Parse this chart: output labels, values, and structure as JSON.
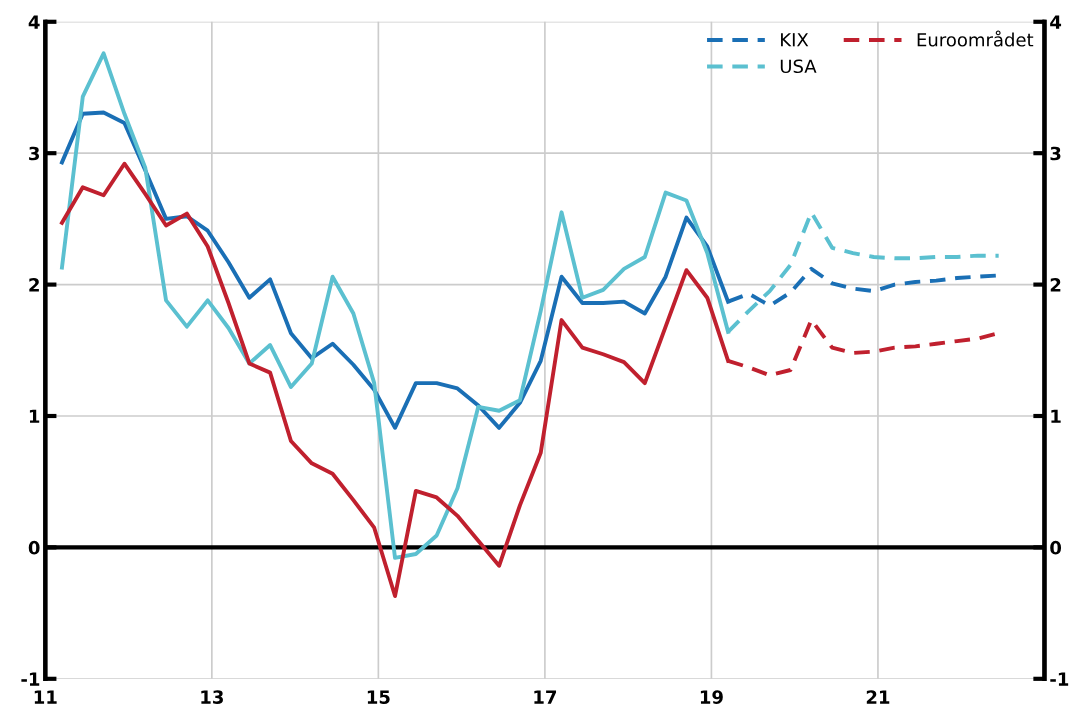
{
  "chart_data": {
    "type": "line",
    "xlim": [
      11,
      23
    ],
    "xticks": [
      11,
      13,
      15,
      17,
      19,
      21
    ],
    "ylim": [
      -1,
      4
    ],
    "yticks": [
      -1,
      0,
      1,
      2,
      3,
      4
    ],
    "y2lim": [
      -1,
      4
    ],
    "y2ticks": [
      -1,
      0,
      1,
      2,
      3,
      4
    ],
    "grid": true,
    "legend": "top right",
    "marker": "none",
    "ref_lines": [
      {
        "axis": "y",
        "value": 0,
        "color": "#000000"
      }
    ],
    "series": [
      {
        "color": "#1a6fb5",
        "line_style": "solid",
        "x": [
          11.2,
          11.45,
          11.7,
          11.95,
          12.2,
          12.45,
          12.7,
          12.95,
          13.2,
          13.45,
          13.7,
          13.95,
          14.2,
          14.45,
          14.7,
          14.95,
          15.2,
          15.45,
          15.7,
          15.95,
          16.2,
          16.45,
          16.7,
          16.95,
          17.2,
          17.45,
          17.7,
          17.95,
          18.2,
          18.45,
          18.7,
          18.95,
          19.2
        ],
        "values": [
          2.93,
          3.3,
          3.31,
          3.23,
          2.87,
          2.5,
          2.52,
          2.41,
          2.17,
          1.9,
          2.04,
          1.63,
          1.44,
          1.55,
          1.39,
          1.2,
          0.91,
          1.25,
          1.25,
          1.21,
          1.08,
          0.91,
          1.1,
          1.42,
          2.06,
          1.86,
          1.86,
          1.87,
          1.78,
          2.06,
          2.51,
          2.29,
          1.87
        ]
      },
      {
        "color": "#5bc0d0",
        "line_style": "solid",
        "x": [
          11.2,
          11.45,
          11.7,
          11.95,
          12.2,
          12.45,
          12.7,
          12.95,
          13.2,
          13.45,
          13.7,
          13.95,
          14.2,
          14.45,
          14.7,
          14.95,
          15.2,
          15.45,
          15.7,
          15.95,
          16.2,
          16.45,
          16.7,
          16.95,
          17.2,
          17.45,
          17.7,
          17.95,
          18.2,
          18.45,
          18.7,
          18.95,
          19.2
        ],
        "values": [
          2.13,
          3.43,
          3.76,
          3.3,
          2.89,
          1.88,
          1.68,
          1.88,
          1.67,
          1.4,
          1.54,
          1.22,
          1.4,
          2.06,
          1.78,
          1.25,
          -0.08,
          -0.05,
          0.09,
          0.45,
          1.07,
          1.04,
          1.12,
          1.8,
          2.55,
          1.9,
          1.96,
          2.12,
          2.21,
          2.7,
          2.64,
          2.24,
          1.64
        ]
      },
      {
        "color": "#c0202e",
        "line_style": "solid",
        "x": [
          11.2,
          11.45,
          11.7,
          11.95,
          12.2,
          12.45,
          12.7,
          12.95,
          13.2,
          13.45,
          13.7,
          13.95,
          14.2,
          14.45,
          14.7,
          14.95,
          15.2,
          15.45,
          15.7,
          15.95,
          16.2,
          16.45,
          16.7,
          16.95,
          17.2,
          17.45,
          17.7,
          17.95,
          18.2,
          18.45,
          18.7,
          18.95,
          19.2
        ],
        "values": [
          2.47,
          2.74,
          2.68,
          2.92,
          2.69,
          2.45,
          2.54,
          2.29,
          1.86,
          1.4,
          1.33,
          0.81,
          0.64,
          0.56,
          0.36,
          0.15,
          -0.37,
          0.43,
          0.38,
          0.24,
          0.05,
          -0.14,
          0.32,
          0.72,
          1.73,
          1.52,
          1.47,
          1.41,
          1.25,
          1.68,
          2.11,
          1.9,
          1.42
        ]
      },
      {
        "name": "KIX",
        "color": "#1a6fb5",
        "line_style": "dashed",
        "x": [
          19.2,
          19.45,
          19.7,
          19.95,
          20.2,
          20.45,
          20.7,
          20.95,
          21.2,
          21.45,
          21.7,
          21.95,
          22.2,
          22.45
        ],
        "values": [
          1.87,
          1.93,
          1.84,
          1.94,
          2.12,
          2.01,
          1.97,
          1.95,
          2.0,
          2.02,
          2.03,
          2.05,
          2.06,
          2.07
        ]
      },
      {
        "name": "USA",
        "color": "#5bc0d0",
        "line_style": "dashed",
        "x": [
          19.2,
          19.45,
          19.7,
          19.95,
          20.2,
          20.45,
          20.7,
          20.95,
          21.2,
          21.45,
          21.7,
          21.95,
          22.2,
          22.45
        ],
        "values": [
          1.64,
          1.8,
          1.95,
          2.15,
          2.55,
          2.28,
          2.24,
          2.21,
          2.2,
          2.2,
          2.21,
          2.21,
          2.22,
          2.22
        ]
      },
      {
        "name": "Euroområdet",
        "color": "#c0202e",
        "line_style": "dashed",
        "x": [
          19.2,
          19.45,
          19.7,
          19.95,
          20.2,
          20.45,
          20.7,
          20.95,
          21.2,
          21.45,
          21.7,
          21.95,
          22.2,
          22.45
        ],
        "values": [
          1.42,
          1.37,
          1.31,
          1.35,
          1.73,
          1.52,
          1.48,
          1.49,
          1.52,
          1.53,
          1.55,
          1.57,
          1.59,
          1.63
        ]
      }
    ]
  }
}
